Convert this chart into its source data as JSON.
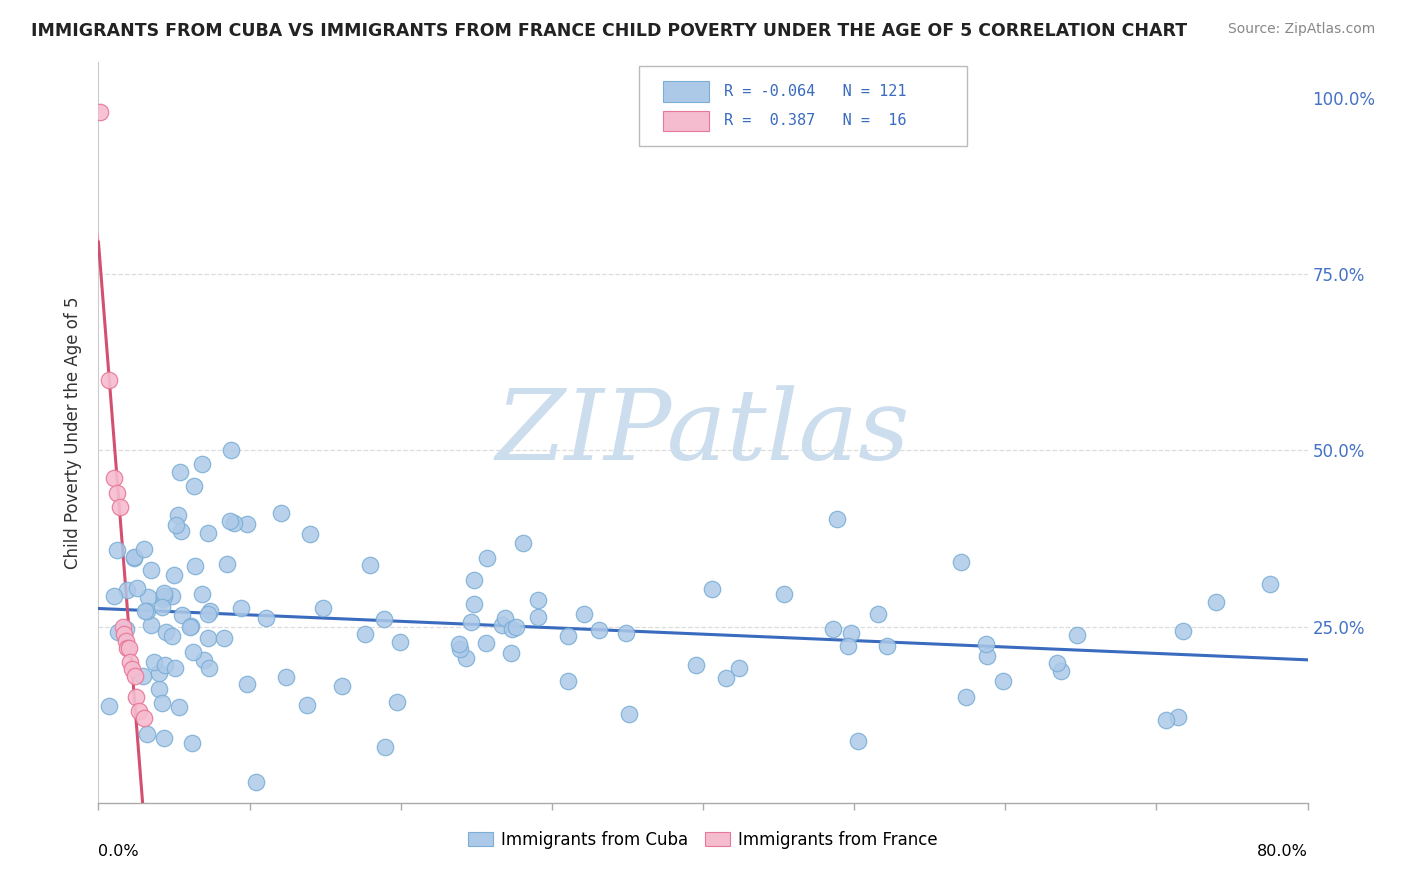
{
  "title": "IMMIGRANTS FROM CUBA VS IMMIGRANTS FROM FRANCE CHILD POVERTY UNDER THE AGE OF 5 CORRELATION CHART",
  "source": "Source: ZipAtlas.com",
  "ylabel": "Child Poverty Under the Age of 5",
  "right_yticklabels": [
    "",
    "25.0%",
    "50.0%",
    "75.0%",
    "100.0%"
  ],
  "xmin": 0.0,
  "xmax": 0.8,
  "ymin": 0.0,
  "ymax": 1.05,
  "cuba_R": -0.064,
  "cuba_N": 121,
  "france_R": 0.387,
  "france_N": 16,
  "cuba_color": "#adc9e8",
  "cuba_edge_color": "#7aaed6",
  "france_color": "#f5bcd0",
  "france_edge_color": "#e87898",
  "cuba_line_color": "#3a6bbf",
  "france_line_color": "#d45070",
  "france_line_dashed_color": "#e899b0",
  "watermark_text": "ZIPatlas",
  "watermark_color": "#ccdded",
  "legend_label_cuba": "Immigrants from Cuba",
  "legend_label_france": "Immigrants from France",
  "grid_color": "#dddddd",
  "title_color": "#222222",
  "source_color": "#888888",
  "right_tick_color": "#4472c4"
}
